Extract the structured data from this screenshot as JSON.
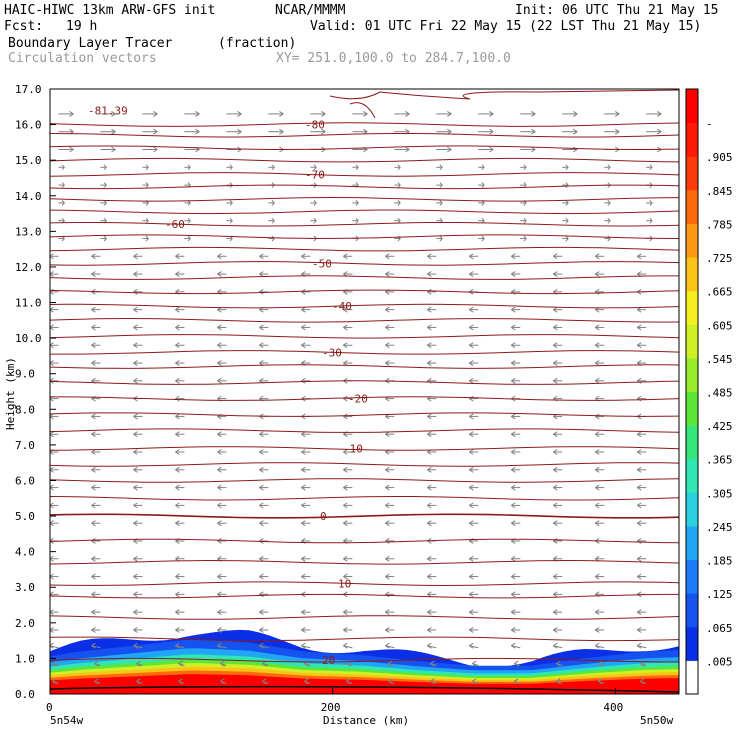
{
  "header": {
    "model": "HAIC-HIWC 13km ARW-GFS init",
    "org": "NCAR/MMMM",
    "init": "Init: 06 UTC Thu 21 May 15",
    "fcst_label": "Fcst:",
    "fcst_value": "19 h",
    "valid": "Valid: 01 UTC Fri 22 May 15 (22 LST Thu 21 May 15)",
    "field1": "Boundary Layer Tracer",
    "field1_units": "(fraction)",
    "field2": "Circulation vectors",
    "xy": "XY= 251.0,100.0 to 284.7,100.0"
  },
  "chart_data": {
    "type": "heatmap",
    "xlabel": "Distance (km)",
    "ylabel": "Height (km)",
    "xlim": [
      0,
      445
    ],
    "ylim": [
      0,
      17
    ],
    "x_ticks": [
      "0",
      "200",
      "400"
    ],
    "x_ends": {
      "left": "5n54w",
      "right": "5n50w"
    },
    "y_ticks": [
      "0.0",
      "1.0",
      "2.0",
      "3.0",
      "4.0",
      "5.0",
      "6.0",
      "7.0",
      "8.0",
      "9.0",
      "10.0",
      "11.0",
      "12.0",
      "13.0",
      "14.0",
      "15.0",
      "16.0",
      "17.0"
    ],
    "colorbar": {
      "labels": [
        ".005",
        ".065",
        ".125",
        ".185",
        ".245",
        ".305",
        ".365",
        ".425",
        ".485",
        ".545",
        ".605",
        ".665",
        ".725",
        ".785",
        ".845",
        ".905",
        "-"
      ],
      "colors": [
        "#ffffff",
        "#0a2fe6",
        "#1652f0",
        "#1b7cf8",
        "#20a6f5",
        "#2ad2e0",
        "#2fe6b4",
        "#35e67a",
        "#5ce63a",
        "#98ec2c",
        "#cff025",
        "#f6ef1f",
        "#f9c417",
        "#fb9a12",
        "#fc6a0e",
        "#fd3a0a",
        "#fe1a06",
        "#ff0000"
      ]
    },
    "temperature_contours": [
      {
        "label": "-81.39",
        "height_km": 16.4
      },
      {
        "label": "-80",
        "height_km": 16.0
      },
      {
        "label": "-70",
        "height_km": 14.6
      },
      {
        "label": "-60",
        "height_km": 13.2
      },
      {
        "label": "-50",
        "height_km": 12.1
      },
      {
        "label": "-40",
        "height_km": 10.9
      },
      {
        "label": "-30",
        "height_km": 9.6
      },
      {
        "label": "-20",
        "height_km": 8.3
      },
      {
        "label": "-10",
        "height_km": 6.9
      },
      {
        "label": "0",
        "height_km": 5.0
      },
      {
        "label": "10",
        "height_km": 3.1
      },
      {
        "label": "20",
        "height_km": 0.95
      }
    ],
    "contour_heights_km": [
      0.95,
      1.55,
      2.15,
      2.75,
      3.1,
      3.7,
      4.3,
      5.0,
      5.5,
      6.0,
      6.45,
      6.9,
      7.4,
      7.85,
      8.3,
      8.75,
      9.2,
      9.6,
      10.05,
      10.5,
      10.9,
      11.3,
      11.7,
      12.1,
      12.5,
      12.85,
      13.2,
      13.55,
      13.9,
      14.25,
      14.6,
      15.0,
      15.35,
      15.7,
      16.0
    ],
    "tracer_top_km": [
      [
        0,
        1.2
      ],
      [
        20,
        1.35
      ],
      [
        60,
        1.55
      ],
      [
        100,
        1.75
      ],
      [
        140,
        1.65
      ],
      [
        180,
        1.35
      ],
      [
        220,
        1.25
      ],
      [
        260,
        1.05
      ],
      [
        300,
        0.9
      ],
      [
        340,
        0.9
      ],
      [
        380,
        1.15
      ],
      [
        420,
        1.35
      ],
      [
        445,
        1.4
      ]
    ]
  }
}
